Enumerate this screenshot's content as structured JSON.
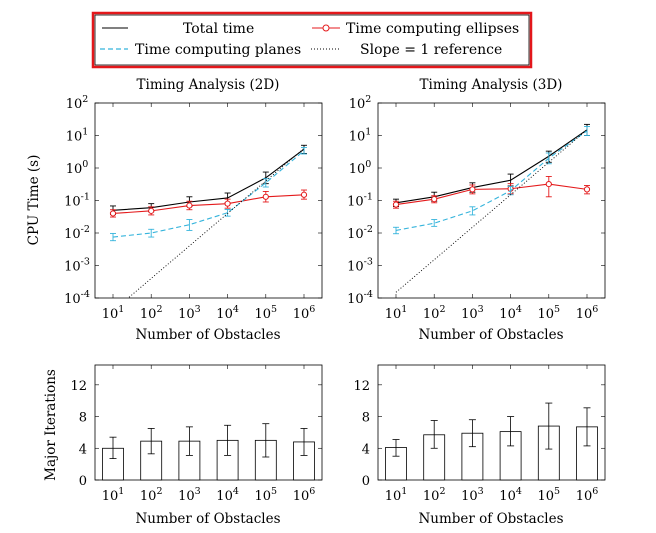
{
  "legend": {
    "entries": [
      {
        "label": "Total time",
        "color": "#000000",
        "style": "solid",
        "marker": "none"
      },
      {
        "label": "Time computing ellipses",
        "color": "#e41a1c",
        "style": "solid",
        "marker": "circle"
      },
      {
        "label": "Time computing planes",
        "color": "#35b4dc",
        "style": "dashed",
        "marker": "none"
      },
      {
        "label": "Slope = 1 reference",
        "color": "#000000",
        "style": "dotted",
        "marker": "none"
      }
    ],
    "highlight_color": "#e3171b"
  },
  "chart_data": [
    {
      "type": "line",
      "title": "Timing Analysis (2D)",
      "xlabel": "Number of Obstacles",
      "ylabel": "CPU Time (s)",
      "xscale": "log",
      "yscale": "log",
      "x": [
        10,
        100,
        1000,
        10000,
        100000,
        1000000
      ],
      "xticks": [
        "10^1",
        "10^2",
        "10^3",
        "10^4",
        "10^5",
        "10^6"
      ],
      "yticks": [
        "10^-4",
        "10^-3",
        "10^-2",
        "10^-1",
        "10^0",
        "10^1",
        "10^2"
      ],
      "ylim": [
        0.0001,
        100
      ],
      "grid": false,
      "series": [
        {
          "name": "Total time",
          "values": [
            0.05,
            0.06,
            0.09,
            0.12,
            0.5,
            3.8
          ],
          "err_low": [
            0.037,
            0.045,
            0.065,
            0.085,
            0.33,
            2.8
          ],
          "err_high": [
            0.068,
            0.08,
            0.13,
            0.17,
            0.75,
            5.0
          ]
        },
        {
          "name": "Time computing ellipses",
          "values": [
            0.04,
            0.048,
            0.07,
            0.08,
            0.13,
            0.15
          ],
          "err_low": [
            0.031,
            0.036,
            0.052,
            0.058,
            0.09,
            0.11
          ],
          "err_high": [
            0.052,
            0.064,
            0.095,
            0.11,
            0.19,
            0.21
          ]
        },
        {
          "name": "Time computing planes",
          "values": [
            0.0075,
            0.01,
            0.018,
            0.042,
            0.35,
            3.4
          ],
          "err_low": [
            0.0058,
            0.0075,
            0.012,
            0.033,
            0.26,
            2.7
          ],
          "err_high": [
            0.0097,
            0.013,
            0.026,
            0.053,
            0.47,
            4.3
          ]
        },
        {
          "name": "Slope = 1 reference",
          "x": [
            20,
            1000000
          ],
          "values": [
            8e-05,
            4.0
          ]
        }
      ]
    },
    {
      "type": "line",
      "title": "Timing Analysis (3D)",
      "xlabel": "Number of Obstacles",
      "ylabel": "",
      "xscale": "log",
      "yscale": "log",
      "x": [
        10,
        100,
        1000,
        10000,
        100000,
        1000000
      ],
      "xticks": [
        "10^1",
        "10^2",
        "10^3",
        "10^4",
        "10^5",
        "10^6"
      ],
      "yticks": [
        "10^-4",
        "10^-3",
        "10^-2",
        "10^-1",
        "10^0",
        "10^1",
        "10^2"
      ],
      "ylim": [
        0.0001,
        100
      ],
      "grid": false,
      "series": [
        {
          "name": "Total time",
          "values": [
            0.085,
            0.13,
            0.25,
            0.42,
            2.3,
            15
          ],
          "err_low": [
            0.065,
            0.095,
            0.18,
            0.28,
            1.5,
            10
          ],
          "err_high": [
            0.11,
            0.18,
            0.35,
            0.65,
            3.3,
            22
          ]
        },
        {
          "name": "Time computing ellipses",
          "values": [
            0.075,
            0.11,
            0.22,
            0.23,
            0.32,
            0.22
          ],
          "err_low": [
            0.058,
            0.085,
            0.16,
            0.16,
            0.13,
            0.16
          ],
          "err_high": [
            0.095,
            0.14,
            0.3,
            0.33,
            0.55,
            0.29
          ]
        },
        {
          "name": "Time computing planes",
          "values": [
            0.012,
            0.02,
            0.048,
            0.2,
            2.0,
            14
          ],
          "err_low": [
            0.0095,
            0.016,
            0.036,
            0.15,
            1.35,
            10
          ],
          "err_high": [
            0.015,
            0.026,
            0.064,
            0.27,
            2.9,
            19
          ]
        },
        {
          "name": "Slope = 1 reference",
          "x": [
            10,
            1000000
          ],
          "values": [
            0.00015,
            15
          ]
        }
      ]
    },
    {
      "type": "bar",
      "title": "",
      "xlabel": "Number of Obstacles",
      "ylabel": "Major Iterations",
      "categories": [
        "10^1",
        "10^2",
        "10^3",
        "10^4",
        "10^5",
        "10^6"
      ],
      "values": [
        4.0,
        4.9,
        4.9,
        5.0,
        5.0,
        4.8
      ],
      "err_low": [
        2.7,
        3.3,
        3.1,
        3.1,
        2.9,
        3.1
      ],
      "err_high": [
        5.4,
        6.5,
        6.7,
        6.9,
        7.1,
        6.5
      ],
      "yticks": [
        0,
        4,
        8,
        12
      ],
      "ylim": [
        0,
        14.5
      ],
      "grid": false
    },
    {
      "type": "bar",
      "title": "",
      "xlabel": "Number of Obstacles",
      "ylabel": "",
      "categories": [
        "10^1",
        "10^2",
        "10^3",
        "10^4",
        "10^5",
        "10^6"
      ],
      "values": [
        4.1,
        5.7,
        5.9,
        6.1,
        6.8,
        6.7
      ],
      "err_low": [
        3.0,
        4.0,
        4.2,
        4.3,
        3.9,
        4.3
      ],
      "err_high": [
        5.1,
        7.5,
        7.6,
        8.0,
        9.7,
        9.1
      ],
      "yticks": [
        0,
        4,
        8,
        12
      ],
      "ylim": [
        0,
        14.5
      ],
      "grid": false
    }
  ]
}
